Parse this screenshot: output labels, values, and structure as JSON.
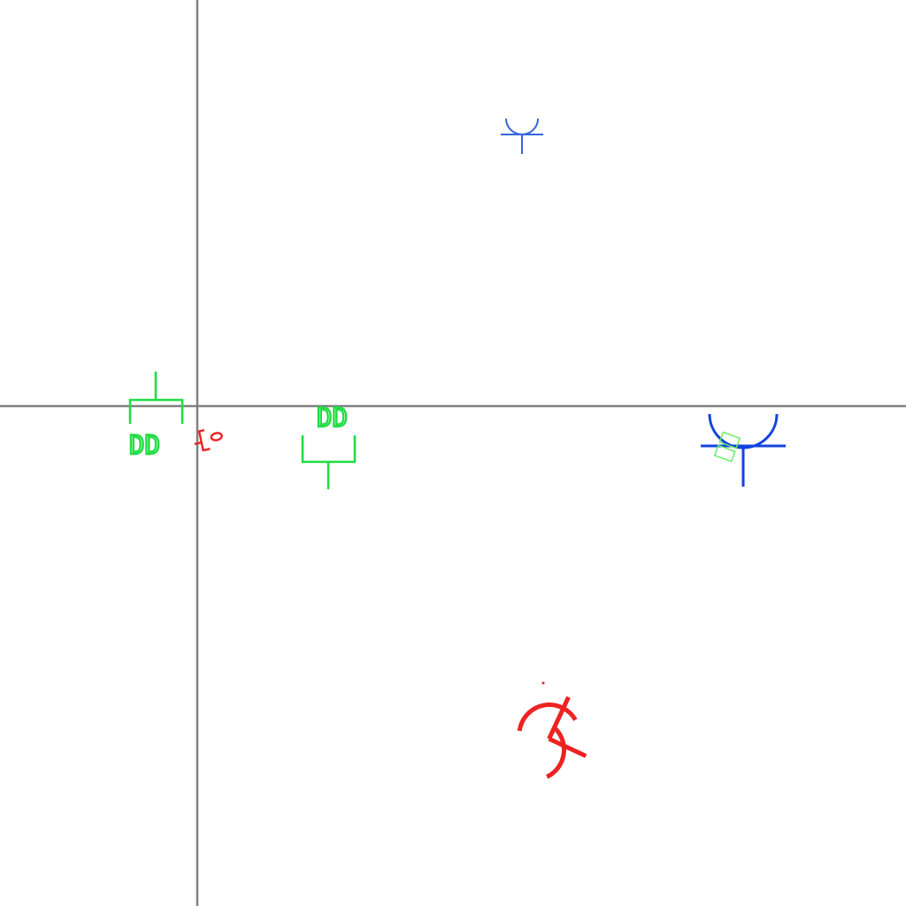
{
  "colors": {
    "background": "#ffffff",
    "axes": "#808080",
    "green": "#22dd44",
    "red": "#ee2222",
    "blue": "#1144dd",
    "light_blue": "#3366dd",
    "light_green": "#66ee66"
  },
  "symbols": [
    {
      "id": "green-connector-left",
      "color": "green",
      "label": "DD"
    },
    {
      "id": "green-connector-mid",
      "color": "green",
      "label": "DD"
    },
    {
      "id": "red-small-symbol",
      "color": "red",
      "label": ""
    },
    {
      "id": "blue-small-receptacle",
      "color": "light_blue",
      "label": ""
    },
    {
      "id": "blue-large-receptacle",
      "color": "blue",
      "label": ""
    },
    {
      "id": "red-rotated-receptacle",
      "color": "red",
      "label": ""
    }
  ]
}
